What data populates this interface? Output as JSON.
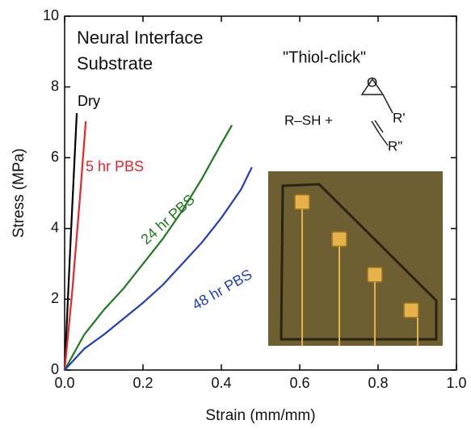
{
  "chart_data": {
    "type": "line",
    "x_label": "Strain (mm/mm)",
    "y_label": "Stress (MPa)",
    "xlim": [
      0,
      1
    ],
    "ylim": [
      0,
      10
    ],
    "xticks": [
      {
        "value": 0,
        "label": "0.0"
      },
      0.2,
      0.4,
      0.6,
      0.8,
      {
        "value": 1,
        "label": "1.0"
      }
    ],
    "yticks": [
      0,
      2,
      4,
      6,
      8,
      10
    ],
    "series": [
      {
        "name": "Dry",
        "color": "#000000",
        "x": [
          0,
          0.015,
          0.031
        ],
        "values": [
          0,
          3.6,
          7.26
        ]
      },
      {
        "name": "5 hr PBS",
        "color": "#e8262b",
        "x": [
          0,
          0.02,
          0.04,
          0.054
        ],
        "values": [
          0,
          2.3,
          5.0,
          7.03
        ]
      },
      {
        "name": "24 hr PBS",
        "color": "#1e7a1e",
        "x": [
          0,
          0.05,
          0.1,
          0.15,
          0.2,
          0.25,
          0.3,
          0.35,
          0.4,
          0.427
        ],
        "values": [
          0,
          1.0,
          1.7,
          2.3,
          3.0,
          3.7,
          4.5,
          5.4,
          6.4,
          6.92
        ]
      },
      {
        "name": "48 hr PBS",
        "color": "#1f3fbf",
        "x": [
          0,
          0.05,
          0.1,
          0.15,
          0.2,
          0.25,
          0.3,
          0.35,
          0.4,
          0.45,
          0.478
        ],
        "values": [
          0,
          0.6,
          1.0,
          1.45,
          1.9,
          2.4,
          3.0,
          3.6,
          4.3,
          5.1,
          5.73
        ]
      }
    ],
    "annotations": [
      "Neural Interface",
      "Substrate",
      "\"Thiol-click\"",
      "R–SH +",
      "O",
      "R'",
      "R\""
    ]
  }
}
